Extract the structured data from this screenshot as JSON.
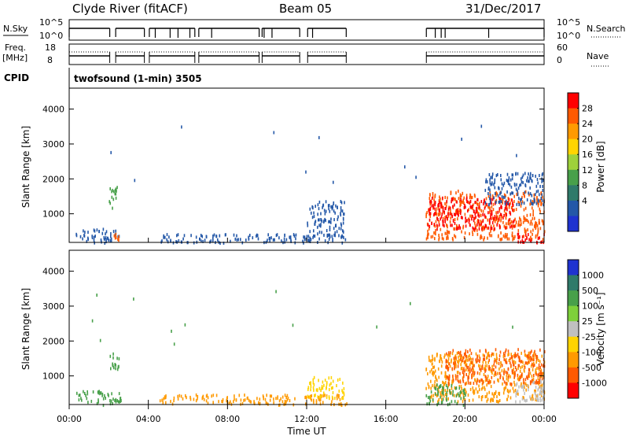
{
  "header": {
    "station": "Clyde River (fitACF)",
    "beam": "Beam 05",
    "date": "31/Dec/2017",
    "nsky_label": "N.Sky",
    "nsearch_label": "N.Search",
    "freq_label": "Freq.",
    "freq_unit": "[MHz]",
    "nave_label": "Nave",
    "cpid_label": "CPID",
    "cpid_value": "twofsound (1-min) 3505"
  },
  "chart_data": [
    {
      "type": "line",
      "title": "N.Sky / N.Search",
      "ylabel_left": "N.Sky",
      "ylabel_right": "N.Search",
      "left_ticks": [
        "10^5",
        "10^0"
      ],
      "right_ticks": [
        "10^5",
        "10^0"
      ],
      "segments_hours": [
        [
          0.0,
          2.05
        ],
        [
          2.35,
          3.8
        ],
        [
          4.05,
          6.35
        ],
        [
          6.55,
          9.6
        ],
        [
          9.75,
          11.65
        ],
        [
          12.05,
          14.0
        ],
        [
          18.05,
          24.0
        ]
      ],
      "dropouts_hours": [
        4.35,
        5.1,
        5.5,
        6.1,
        7.2,
        9.85,
        10.25,
        12.3,
        18.5,
        18.8,
        19.0,
        21.2
      ]
    },
    {
      "type": "line",
      "title": "Freq. / Nave",
      "ylabel_left": "Freq. [MHz]",
      "ylabel_right": "Nave",
      "left_ticks": [
        "18",
        "8"
      ],
      "right_ticks": [
        "60",
        "0"
      ],
      "segments_hours": [
        [
          0.0,
          2.05
        ],
        [
          2.35,
          3.8
        ],
        [
          4.05,
          6.35
        ],
        [
          6.55,
          9.6
        ],
        [
          9.75,
          11.65
        ],
        [
          12.05,
          14.0
        ],
        [
          18.05,
          24.0
        ]
      ]
    },
    {
      "type": "heatmap",
      "title": "Power",
      "ylabel": "Slant Range [km]",
      "y_ticks": [
        1000,
        2000,
        3000,
        4000
      ],
      "ylim": [
        180,
        4600
      ],
      "xlim_hours": [
        0,
        24
      ],
      "colorbar_label": "Power [dB]",
      "colorbar_ticks": [
        "28",
        "24",
        "20",
        "16",
        "12",
        "8",
        "4"
      ],
      "colorbar_colors": [
        "#ff0000",
        "#ff5a00",
        "#ff9a00",
        "#ffd400",
        "#9ed13b",
        "#48a04a",
        "#2f7a6a",
        "#2458a8",
        "#1f33d0"
      ],
      "blobs": [
        {
          "t0": 0.3,
          "t1": 2.5,
          "r0": 200,
          "r1": 600,
          "color": "#2458a8"
        },
        {
          "t0": 2.0,
          "t1": 2.5,
          "r0": 1200,
          "r1": 1800,
          "color": "#48a04a"
        },
        {
          "t0": 2.2,
          "t1": 2.6,
          "r0": 250,
          "r1": 550,
          "color": "#ff5a00"
        },
        {
          "t0": 4.5,
          "t1": 14.0,
          "r0": 200,
          "r1": 450,
          "color": "#2458a8"
        },
        {
          "t0": 12.0,
          "t1": 13.9,
          "r0": 400,
          "r1": 1400,
          "color": "#2458a8"
        },
        {
          "t0": 18.0,
          "t1": 24.0,
          "r0": 300,
          "r1": 1700,
          "color": "#ff5a00"
        },
        {
          "t0": 18.1,
          "t1": 22.5,
          "r0": 600,
          "r1": 1500,
          "color": "#ff0000"
        },
        {
          "t0": 22.5,
          "t1": 24.0,
          "r0": 200,
          "r1": 500,
          "color": "#ff0000"
        },
        {
          "t0": 21.0,
          "t1": 24.0,
          "r0": 1300,
          "r1": 2200,
          "color": "#2458a8"
        }
      ]
    },
    {
      "type": "heatmap",
      "title": "Velocity",
      "ylabel": "Slant Range [km]",
      "xlabel": "Time UT",
      "x_ticks": [
        "00:00",
        "04:00",
        "08:00",
        "12:00",
        "16:00",
        "20:00",
        "00:00"
      ],
      "y_ticks": [
        1000,
        2000,
        3000,
        4000
      ],
      "ylim": [
        180,
        4600
      ],
      "xlim_hours": [
        0,
        24
      ],
      "colorbar_label": "Velocity [m s⁻¹]",
      "colorbar_ticks": [
        "1000",
        "500",
        "100",
        "25",
        "-25",
        "-100",
        "-500",
        "-1000"
      ],
      "colorbar_colors": [
        "#1f33d0",
        "#2f7a6a",
        "#48a04a",
        "#7ed03a",
        "#c0c0c0",
        "#ffd400",
        "#ff9a00",
        "#ff5a00",
        "#ff0000"
      ],
      "blobs": [
        {
          "t0": 0.3,
          "t1": 2.6,
          "r0": 200,
          "r1": 600,
          "color": "#48a04a"
        },
        {
          "t0": 2.0,
          "t1": 2.5,
          "r0": 1200,
          "r1": 1800,
          "color": "#48a04a"
        },
        {
          "t0": 4.5,
          "t1": 14.0,
          "r0": 200,
          "r1": 500,
          "color": "#ff9a00"
        },
        {
          "t0": 12.0,
          "t1": 13.9,
          "r0": 400,
          "r1": 1000,
          "color": "#ffd400"
        },
        {
          "t0": 18.0,
          "t1": 24.0,
          "r0": 300,
          "r1": 1700,
          "color": "#ff9a00"
        },
        {
          "t0": 19.0,
          "t1": 24.0,
          "r0": 800,
          "r1": 1800,
          "color": "#ff5a00"
        },
        {
          "t0": 18.0,
          "t1": 20.0,
          "r0": 200,
          "r1": 800,
          "color": "#48a04a"
        },
        {
          "t0": 22.5,
          "t1": 24.0,
          "r0": 300,
          "r1": 900,
          "color": "#c0c0c0"
        }
      ]
    }
  ]
}
